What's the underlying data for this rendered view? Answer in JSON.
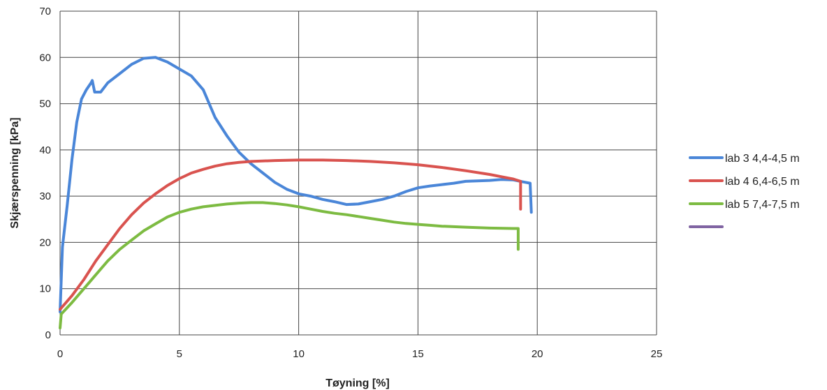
{
  "chart_data": {
    "type": "line",
    "title": "",
    "xlabel": "Tøyning [%]",
    "ylabel": "Skjærspenning [kPa]",
    "xlim": [
      0,
      25
    ],
    "ylim": [
      0,
      70
    ],
    "xticks": [
      0,
      5,
      10,
      15,
      20,
      25
    ],
    "yticks": [
      0,
      10,
      20,
      30,
      40,
      50,
      60,
      70
    ],
    "grid": true,
    "legend_position": "right",
    "series": [
      {
        "name": "lab 3 4,4-4,5 m",
        "color": "#4a86d8",
        "points": [
          [
            0,
            5
          ],
          [
            0.1,
            19
          ],
          [
            0.3,
            28
          ],
          [
            0.5,
            38
          ],
          [
            0.7,
            46
          ],
          [
            0.9,
            51
          ],
          [
            1.1,
            53
          ],
          [
            1.3,
            54.5
          ],
          [
            1.35,
            55
          ],
          [
            1.45,
            52.5
          ],
          [
            1.7,
            52.5
          ],
          [
            2.0,
            54.5
          ],
          [
            2.5,
            56.5
          ],
          [
            3.0,
            58.5
          ],
          [
            3.5,
            59.8
          ],
          [
            4.0,
            60
          ],
          [
            4.5,
            59
          ],
          [
            5.0,
            57.5
          ],
          [
            5.5,
            56
          ],
          [
            6.0,
            53
          ],
          [
            6.5,
            47
          ],
          [
            7.0,
            43
          ],
          [
            7.5,
            39.5
          ],
          [
            8.0,
            37
          ],
          [
            8.5,
            35
          ],
          [
            9.0,
            33
          ],
          [
            9.5,
            31.5
          ],
          [
            10.0,
            30.5
          ],
          [
            10.5,
            30
          ],
          [
            11.0,
            29.3
          ],
          [
            11.5,
            28.8
          ],
          [
            12.0,
            28.2
          ],
          [
            12.5,
            28.3
          ],
          [
            13.0,
            28.8
          ],
          [
            13.5,
            29.3
          ],
          [
            14.0,
            30
          ],
          [
            14.5,
            31
          ],
          [
            15.0,
            31.8
          ],
          [
            15.5,
            32.2
          ],
          [
            16.0,
            32.5
          ],
          [
            16.5,
            32.8
          ],
          [
            17.0,
            33.2
          ],
          [
            17.5,
            33.3
          ],
          [
            18.0,
            33.4
          ],
          [
            18.5,
            33.6
          ],
          [
            19.0,
            33.5
          ],
          [
            19.5,
            33
          ],
          [
            19.7,
            32.8
          ],
          [
            19.75,
            26.5
          ]
        ]
      },
      {
        "name": "lab 4 6,4-6,5 m",
        "color": "#d9534f",
        "points": [
          [
            0,
            5.5
          ],
          [
            0.5,
            8.5
          ],
          [
            1.0,
            12
          ],
          [
            1.5,
            16
          ],
          [
            2.0,
            19.5
          ],
          [
            2.5,
            23
          ],
          [
            3.0,
            26
          ],
          [
            3.5,
            28.5
          ],
          [
            4.0,
            30.5
          ],
          [
            4.5,
            32.3
          ],
          [
            5.0,
            33.8
          ],
          [
            5.5,
            35
          ],
          [
            6.0,
            35.8
          ],
          [
            6.5,
            36.5
          ],
          [
            7.0,
            37
          ],
          [
            7.5,
            37.3
          ],
          [
            8.0,
            37.5
          ],
          [
            9.0,
            37.7
          ],
          [
            10.0,
            37.8
          ],
          [
            11.0,
            37.8
          ],
          [
            12.0,
            37.7
          ],
          [
            13.0,
            37.5
          ],
          [
            14.0,
            37.2
          ],
          [
            15.0,
            36.8
          ],
          [
            16.0,
            36.2
          ],
          [
            17.0,
            35.5
          ],
          [
            18.0,
            34.7
          ],
          [
            18.5,
            34.2
          ],
          [
            19.0,
            33.7
          ],
          [
            19.3,
            33.2
          ],
          [
            19.3,
            27.2
          ]
        ]
      },
      {
        "name": "lab 5 7,4-7,5 m",
        "color": "#7dbb42",
        "points": [
          [
            0,
            1.5
          ],
          [
            0.05,
            4.5
          ],
          [
            0.5,
            7
          ],
          [
            1.0,
            10
          ],
          [
            1.5,
            13
          ],
          [
            2.0,
            16
          ],
          [
            2.5,
            18.5
          ],
          [
            3.0,
            20.5
          ],
          [
            3.5,
            22.5
          ],
          [
            4.0,
            24
          ],
          [
            4.5,
            25.5
          ],
          [
            5.0,
            26.5
          ],
          [
            5.5,
            27.2
          ],
          [
            6.0,
            27.7
          ],
          [
            6.5,
            28
          ],
          [
            7.0,
            28.3
          ],
          [
            7.5,
            28.5
          ],
          [
            8.0,
            28.6
          ],
          [
            8.5,
            28.6
          ],
          [
            9.0,
            28.4
          ],
          [
            9.5,
            28.1
          ],
          [
            10.0,
            27.7
          ],
          [
            10.5,
            27.2
          ],
          [
            11.0,
            26.7
          ],
          [
            11.5,
            26.3
          ],
          [
            12.0,
            26
          ],
          [
            12.5,
            25.6
          ],
          [
            13.0,
            25.2
          ],
          [
            13.5,
            24.8
          ],
          [
            14.0,
            24.4
          ],
          [
            14.5,
            24.1
          ],
          [
            15.0,
            23.9
          ],
          [
            15.5,
            23.7
          ],
          [
            16.0,
            23.5
          ],
          [
            17.0,
            23.3
          ],
          [
            18.0,
            23.1
          ],
          [
            19.0,
            23
          ],
          [
            19.2,
            23
          ],
          [
            19.2,
            18.5
          ]
        ]
      },
      {
        "name": "",
        "color": "#8064a2",
        "points": []
      }
    ]
  }
}
